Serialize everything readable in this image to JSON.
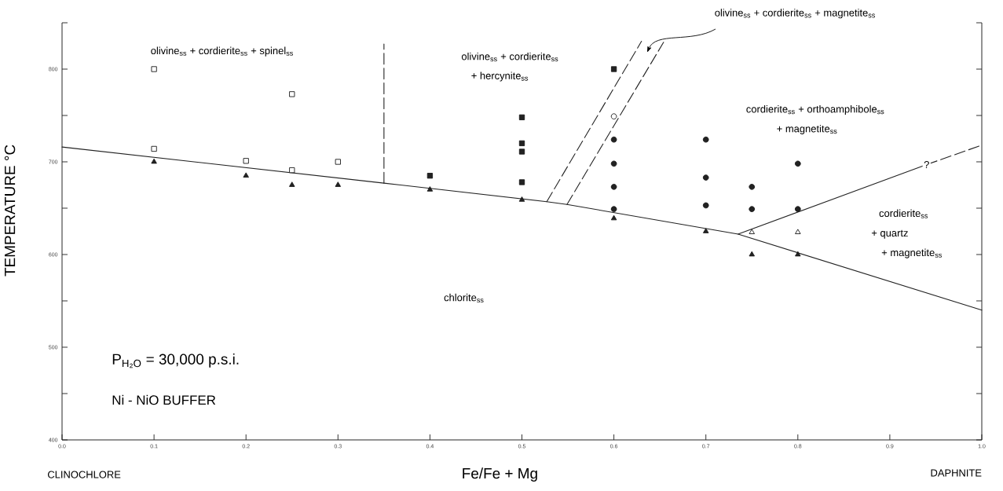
{
  "chart_data": {
    "type": "scatter",
    "xlabel": "Fe/Fe + Mg",
    "ylabel": "TEMPERATURE °C",
    "xlim": [
      0,
      1
    ],
    "ylim": [
      400,
      850
    ],
    "xticks": [
      {
        "value": 0,
        "label": "0.0"
      },
      0.1,
      0.2,
      0.3,
      0.4,
      0.5,
      0.6,
      0.7,
      0.8,
      0.9,
      {
        "value": 1,
        "label": "1.0"
      }
    ],
    "yticks": [
      400,
      {
        "value": 450,
        "label": null
      },
      500,
      {
        "value": 550,
        "label": null
      },
      600,
      {
        "value": 650,
        "label": null
      },
      700,
      {
        "value": 750,
        "label": null
      },
      800,
      {
        "value": 850,
        "label": null
      }
    ],
    "grid": false,
    "series": [
      {
        "type": "line",
        "color": "#222222",
        "line_style": "solid",
        "x": [
          0,
          0.35,
          0.527,
          0.549,
          0.735,
          1.0
        ],
        "values": [
          716,
          677,
          657,
          654,
          622,
          540
        ]
      },
      {
        "type": "line",
        "color": "#222222",
        "line_style": "solid",
        "x": [
          0.735,
          0.94
        ],
        "values": [
          622,
          697
        ]
      },
      {
        "type": "line",
        "color": "#222222",
        "line_style": "dashed",
        "x": [
          0.94,
          1.0
        ],
        "values": [
          697,
          718
        ]
      },
      {
        "type": "line",
        "color": "#222222",
        "line_style": "dashed",
        "x": [
          0.35,
          0.35
        ],
        "values": [
          677,
          827
        ]
      },
      {
        "type": "line",
        "color": "#222222",
        "line_style": "dashed",
        "x": [
          0.527,
          0.63
        ],
        "values": [
          657,
          830
        ]
      },
      {
        "type": "line",
        "color": "#222222",
        "line_style": "dashed",
        "x": [
          0.549,
          0.654
        ],
        "values": [
          654,
          829
        ]
      },
      {
        "color": "#ffffff",
        "marker": "square",
        "x": [
          0.1,
          0.1,
          0.2,
          0.25,
          0.25,
          0.3
        ],
        "values": [
          800,
          714,
          701,
          773,
          691,
          700
        ]
      },
      {
        "color": "#222222",
        "marker": "square",
        "x": [
          0.4,
          0.5,
          0.5,
          0.5,
          0.5,
          0.6
        ],
        "values": [
          685,
          748,
          720,
          711,
          678,
          800
        ]
      },
      {
        "color": "#222222",
        "marker": "triangle",
        "x": [
          0.1,
          0.2,
          0.25,
          0.3,
          0.4,
          0.5,
          0.6,
          0.7,
          0.75,
          0.8
        ],
        "values": [
          700,
          685,
          675,
          675,
          670,
          659,
          639,
          625,
          600,
          600
        ]
      },
      {
        "color": "#ffffff",
        "marker": "triangle",
        "x": [
          0.75,
          0.8
        ],
        "values": [
          624,
          624
        ]
      },
      {
        "color": "#ffffff",
        "marker": "circle",
        "x": [
          0.6
        ],
        "values": [
          749
        ]
      },
      {
        "color": "#222222",
        "marker": "circle",
        "x": [
          0.6,
          0.6,
          0.6,
          0.6,
          0.7,
          0.7,
          0.7,
          0.75,
          0.75,
          0.8,
          0.8
        ],
        "values": [
          724,
          698,
          673,
          649,
          724,
          683,
          653,
          673,
          649,
          698,
          649
        ]
      }
    ],
    "annotations": [
      "olivine$_{ss}$ + cordierite$_{ss}$ + spinel$_{ss}$",
      "olivine$_{ss}$ + cordierite$_{ss}$",
      "+ hercynite$_{ss}$",
      "cordierite$_{ss}$ + orthoamphibole$_{ss}$",
      "+ magnetite$_{ss}$",
      "cordierite$_{ss}$",
      "+ quartz",
      "+ magnetite$_{ss}$",
      "chlorite$_{ss}$",
      {
        "text": "?",
        "x": 0.94,
        "y": 697
      },
      "olivine$_{ss}$ + cordierite$_{ss}$ + magnetite$_{ss}$",
      "P$_{H₂O}$ = 30,000 p.s.i.",
      "Ni - NiO BUFFER",
      "CLINOCHLORE",
      "DAPHNITE"
    ]
  }
}
